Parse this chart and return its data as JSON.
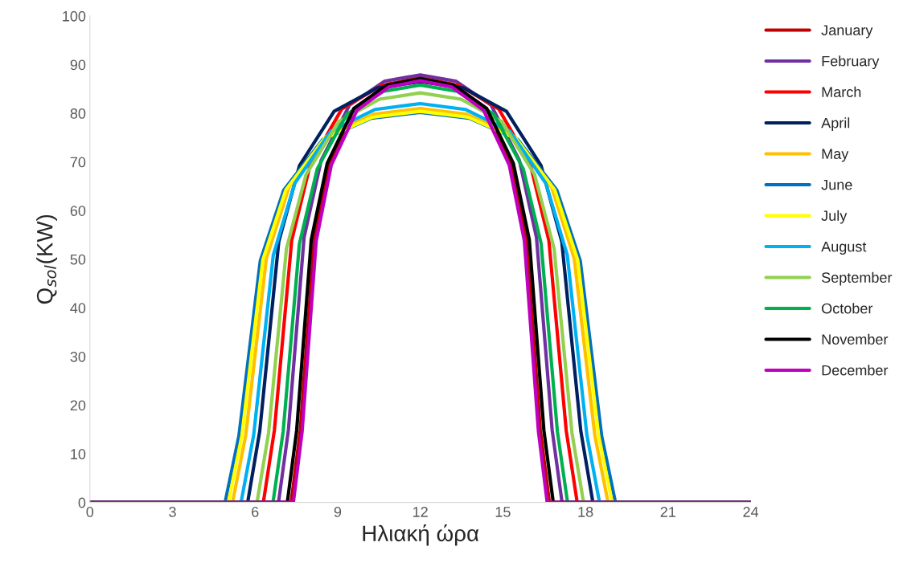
{
  "chart_data": {
    "type": "line",
    "xlabel": "Ηλιακή ώρα",
    "ylabel": "Q$_{sol}$(KW)",
    "xlim": [
      0,
      24
    ],
    "xticks": [
      0,
      3,
      6,
      9,
      12,
      15,
      18,
      21,
      24
    ],
    "ylim": [
      0,
      100
    ],
    "yticks": [
      0,
      10,
      20,
      30,
      40,
      50,
      60,
      70,
      80,
      90,
      100
    ],
    "grid": false,
    "legend": "right",
    "marker": "none",
    "line_style": "solid",
    "series": [
      {
        "name": "January",
        "color": "#c00000",
        "x": [
          0,
          7.31,
          7.64,
          8.15,
          8.72,
          9.66,
          10.83,
          12,
          13.17,
          14.34,
          15.28,
          15.85,
          16.36,
          16.69,
          24
        ],
        "values": [
          0,
          0,
          14.8,
          54.1,
          69.8,
          81.2,
          86.0,
          87.3,
          86.0,
          81.2,
          69.8,
          54.1,
          14.8,
          0,
          0
        ]
      },
      {
        "name": "February",
        "color": "#7030a0",
        "x": [
          0,
          6.85,
          7.21,
          7.78,
          8.4,
          9.43,
          10.71,
          12,
          13.29,
          14.57,
          15.6,
          16.22,
          16.79,
          17.15,
          24
        ],
        "values": [
          0,
          0,
          14.9,
          54.5,
          70.3,
          81.7,
          86.6,
          87.9,
          86.6,
          81.7,
          70.3,
          54.5,
          14.9,
          0,
          0
        ]
      },
      {
        "name": "March",
        "color": "#ff0000",
        "x": [
          0,
          6.3,
          6.7,
          7.33,
          8.01,
          9.15,
          10.58,
          12,
          13.42,
          14.85,
          15.99,
          16.67,
          17.3,
          17.7,
          24
        ],
        "values": [
          0,
          0,
          14.8,
          53.9,
          69.6,
          80.9,
          85.7,
          87.0,
          85.7,
          80.9,
          69.6,
          53.9,
          14.8,
          0,
          0
        ]
      },
      {
        "name": "April",
        "color": "#002060",
        "x": [
          0,
          5.73,
          6.17,
          6.86,
          7.61,
          8.87,
          10.43,
          12,
          13.57,
          15.13,
          16.39,
          17.14,
          17.83,
          18.27,
          24
        ],
        "values": [
          0,
          0,
          14.7,
          53.6,
          69.2,
          80.4,
          85.2,
          86.5,
          85.2,
          80.4,
          69.2,
          53.6,
          14.7,
          0,
          0
        ]
      },
      {
        "name": "May",
        "color": "#ffc000",
        "x": [
          0,
          5.18,
          5.66,
          6.41,
          7.23,
          8.59,
          10.3,
          12,
          13.7,
          15.41,
          16.77,
          17.59,
          18.34,
          18.82,
          24
        ],
        "values": [
          0,
          0,
          13.8,
          50.2,
          64.8,
          75.3,
          79.8,
          81.0,
          79.8,
          75.3,
          64.8,
          50.2,
          13.8,
          0,
          0
        ]
      },
      {
        "name": "June",
        "color": "#0070c0",
        "x": [
          0,
          4.91,
          5.41,
          6.19,
          7.04,
          8.46,
          10.23,
          12,
          13.77,
          15.54,
          16.96,
          17.81,
          18.59,
          19.09,
          24
        ],
        "values": [
          0,
          0,
          13.6,
          49.7,
          64.2,
          74.6,
          79.0,
          80.2,
          79.0,
          74.6,
          64.2,
          49.7,
          13.6,
          0,
          0
        ]
      },
      {
        "name": "July",
        "color": "#ffff00",
        "x": [
          0,
          5.03,
          5.52,
          6.28,
          7.12,
          8.52,
          10.26,
          12,
          13.74,
          15.48,
          16.88,
          17.72,
          18.48,
          18.97,
          24
        ],
        "values": [
          0,
          0,
          13.7,
          49.8,
          64.3,
          74.8,
          79.2,
          80.4,
          79.2,
          74.8,
          64.3,
          49.8,
          13.7,
          0,
          0
        ]
      },
      {
        "name": "August",
        "color": "#00b0f0",
        "x": [
          0,
          5.49,
          5.95,
          6.66,
          7.44,
          8.75,
          10.37,
          12,
          13.63,
          15.25,
          16.56,
          17.34,
          18.05,
          18.51,
          24
        ],
        "values": [
          0,
          0,
          13.9,
          50.8,
          65.6,
          76.3,
          80.8,
          82.0,
          80.8,
          76.3,
          65.6,
          50.8,
          13.9,
          0,
          0
        ]
      },
      {
        "name": "September",
        "color": "#92d050",
        "x": [
          0,
          6.07,
          6.49,
          7.14,
          7.85,
          9.04,
          10.52,
          12,
          13.48,
          14.96,
          16.15,
          16.86,
          17.51,
          17.93,
          24
        ],
        "values": [
          0,
          0,
          14.3,
          52.2,
          67.4,
          78.3,
          82.9,
          84.2,
          82.9,
          78.3,
          67.4,
          52.2,
          14.3,
          0,
          0
        ]
      },
      {
        "name": "October",
        "color": "#00b050",
        "x": [
          0,
          6.65,
          7.02,
          7.61,
          8.26,
          9.33,
          10.66,
          12,
          13.34,
          14.67,
          15.74,
          16.39,
          16.98,
          17.35,
          24
        ],
        "values": [
          0,
          0,
          14.6,
          53.2,
          68.6,
          79.8,
          84.5,
          85.8,
          84.5,
          79.8,
          68.6,
          53.2,
          14.6,
          0,
          0
        ]
      },
      {
        "name": "November",
        "color": "#000000",
        "x": [
          0,
          7.17,
          7.51,
          8.04,
          8.62,
          9.59,
          10.79,
          12,
          13.21,
          14.41,
          15.38,
          15.96,
          16.49,
          16.83,
          24
        ],
        "values": [
          0,
          0,
          14.8,
          54.0,
          69.7,
          81.0,
          85.8,
          87.1,
          85.8,
          81.0,
          69.7,
          54.0,
          14.8,
          0,
          0
        ]
      },
      {
        "name": "December",
        "color": "#c000c0",
        "x": [
          0,
          7.39,
          7.71,
          8.22,
          8.77,
          9.7,
          10.85,
          12,
          13.15,
          14.3,
          15.23,
          15.78,
          16.29,
          16.61,
          24
        ],
        "values": [
          0,
          0,
          14.7,
          53.8,
          69.4,
          80.6,
          85.4,
          86.7,
          85.4,
          80.6,
          69.4,
          53.8,
          14.7,
          0,
          0
        ]
      }
    ]
  }
}
